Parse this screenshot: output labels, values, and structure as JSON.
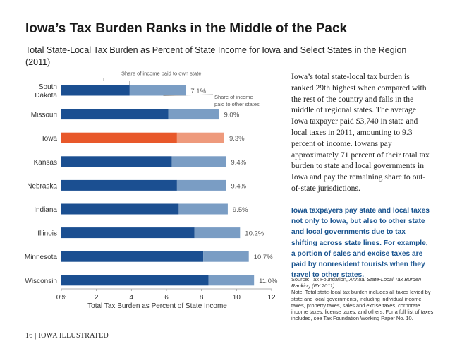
{
  "header": {
    "title": "Iowa’s Tax Burden Ranks in the Middle of the Pack",
    "subtitle": "Total State-Local Tax Burden as Percent of State Income for Iowa and Select States in the Region (2011)"
  },
  "chart_data": {
    "type": "bar",
    "orientation": "horizontal",
    "stacked": true,
    "categories": [
      "South Dakota",
      "Missouri",
      "Iowa",
      "Kansas",
      "Nebraska",
      "Indiana",
      "Illinois",
      "Minnesota",
      "Wisconsin"
    ],
    "category_lines": [
      [
        "South",
        "Dakota"
      ],
      [
        "Missouri"
      ],
      [
        "Iowa"
      ],
      [
        "Kansas"
      ],
      [
        "Nebraska"
      ],
      [
        "Indiana"
      ],
      [
        "Illinois"
      ],
      [
        "Minnesota"
      ],
      [
        "Wisconsin"
      ]
    ],
    "series": [
      {
        "name": "Share of income paid to own state",
        "values": [
          3.9,
          6.1,
          6.6,
          6.3,
          6.6,
          6.7,
          7.6,
          8.1,
          8.4
        ]
      },
      {
        "name": "Share of income paid to other states",
        "values": [
          3.2,
          2.9,
          2.7,
          3.1,
          2.8,
          2.8,
          2.6,
          2.6,
          2.6
        ]
      }
    ],
    "total_labels": [
      "7.1%",
      "9.0%",
      "9.3%",
      "9.4%",
      "9.4%",
      "9.5%",
      "10.2%",
      "10.7%",
      "11.0%"
    ],
    "highlight_category": "Iowa",
    "colors": {
      "own_state": "#1b4f91",
      "other_states": "#7a9dc4",
      "highlight_own_state": "#e8582a",
      "highlight_other_states": "#ee9a7c"
    },
    "xlabel": "Total Tax Burden as Percent of State Income",
    "xlim": [
      0,
      12
    ],
    "xticks": [
      0,
      2,
      4,
      6,
      8,
      10,
      12
    ],
    "xtick_labels": [
      "0%",
      "2",
      "4",
      "6",
      "8",
      "10",
      "12"
    ],
    "annotations": {
      "own_state": "Share of income paid to own state",
      "other_states": [
        "Share of income",
        "paid to other states"
      ]
    },
    "grid": false
  },
  "narrative": "Iowa’s total state-local tax burden is ranked 29th highest when compared with the rest of the country and falls in the middle of regional states. The average Iowa taxpayer paid $3,740 in state and local taxes in 2011, amounting to 9.3 percent of income. Iowans pay approximately 71 percent of their total tax burden to state and local governments in Iowa and pay the remaining share to out-of-state jurisdictions.",
  "highlight_text": "Iowa taxpayers pay state and local taxes not only to Iowa, but also to other state and local governments due to tax shifting across state lines. For example, a portion of sales and excise taxes are paid by nonresident tourists when they travel to other states.",
  "source": {
    "prefix": "Source: Tax Foundation, ",
    "title": "Annual State-Local Tax Burden Ranking (FY 2011).",
    "note": "Note: Total state-local tax burden includes all taxes levied by state and local governments, including individual income taxes, property taxes, sales and excise taxes, corporate income taxes, license taxes, and others. For a full list of taxes included, see Tax Foundation Working Paper No. 10."
  },
  "footer": "16 | IOWA ILLUSTRATED"
}
